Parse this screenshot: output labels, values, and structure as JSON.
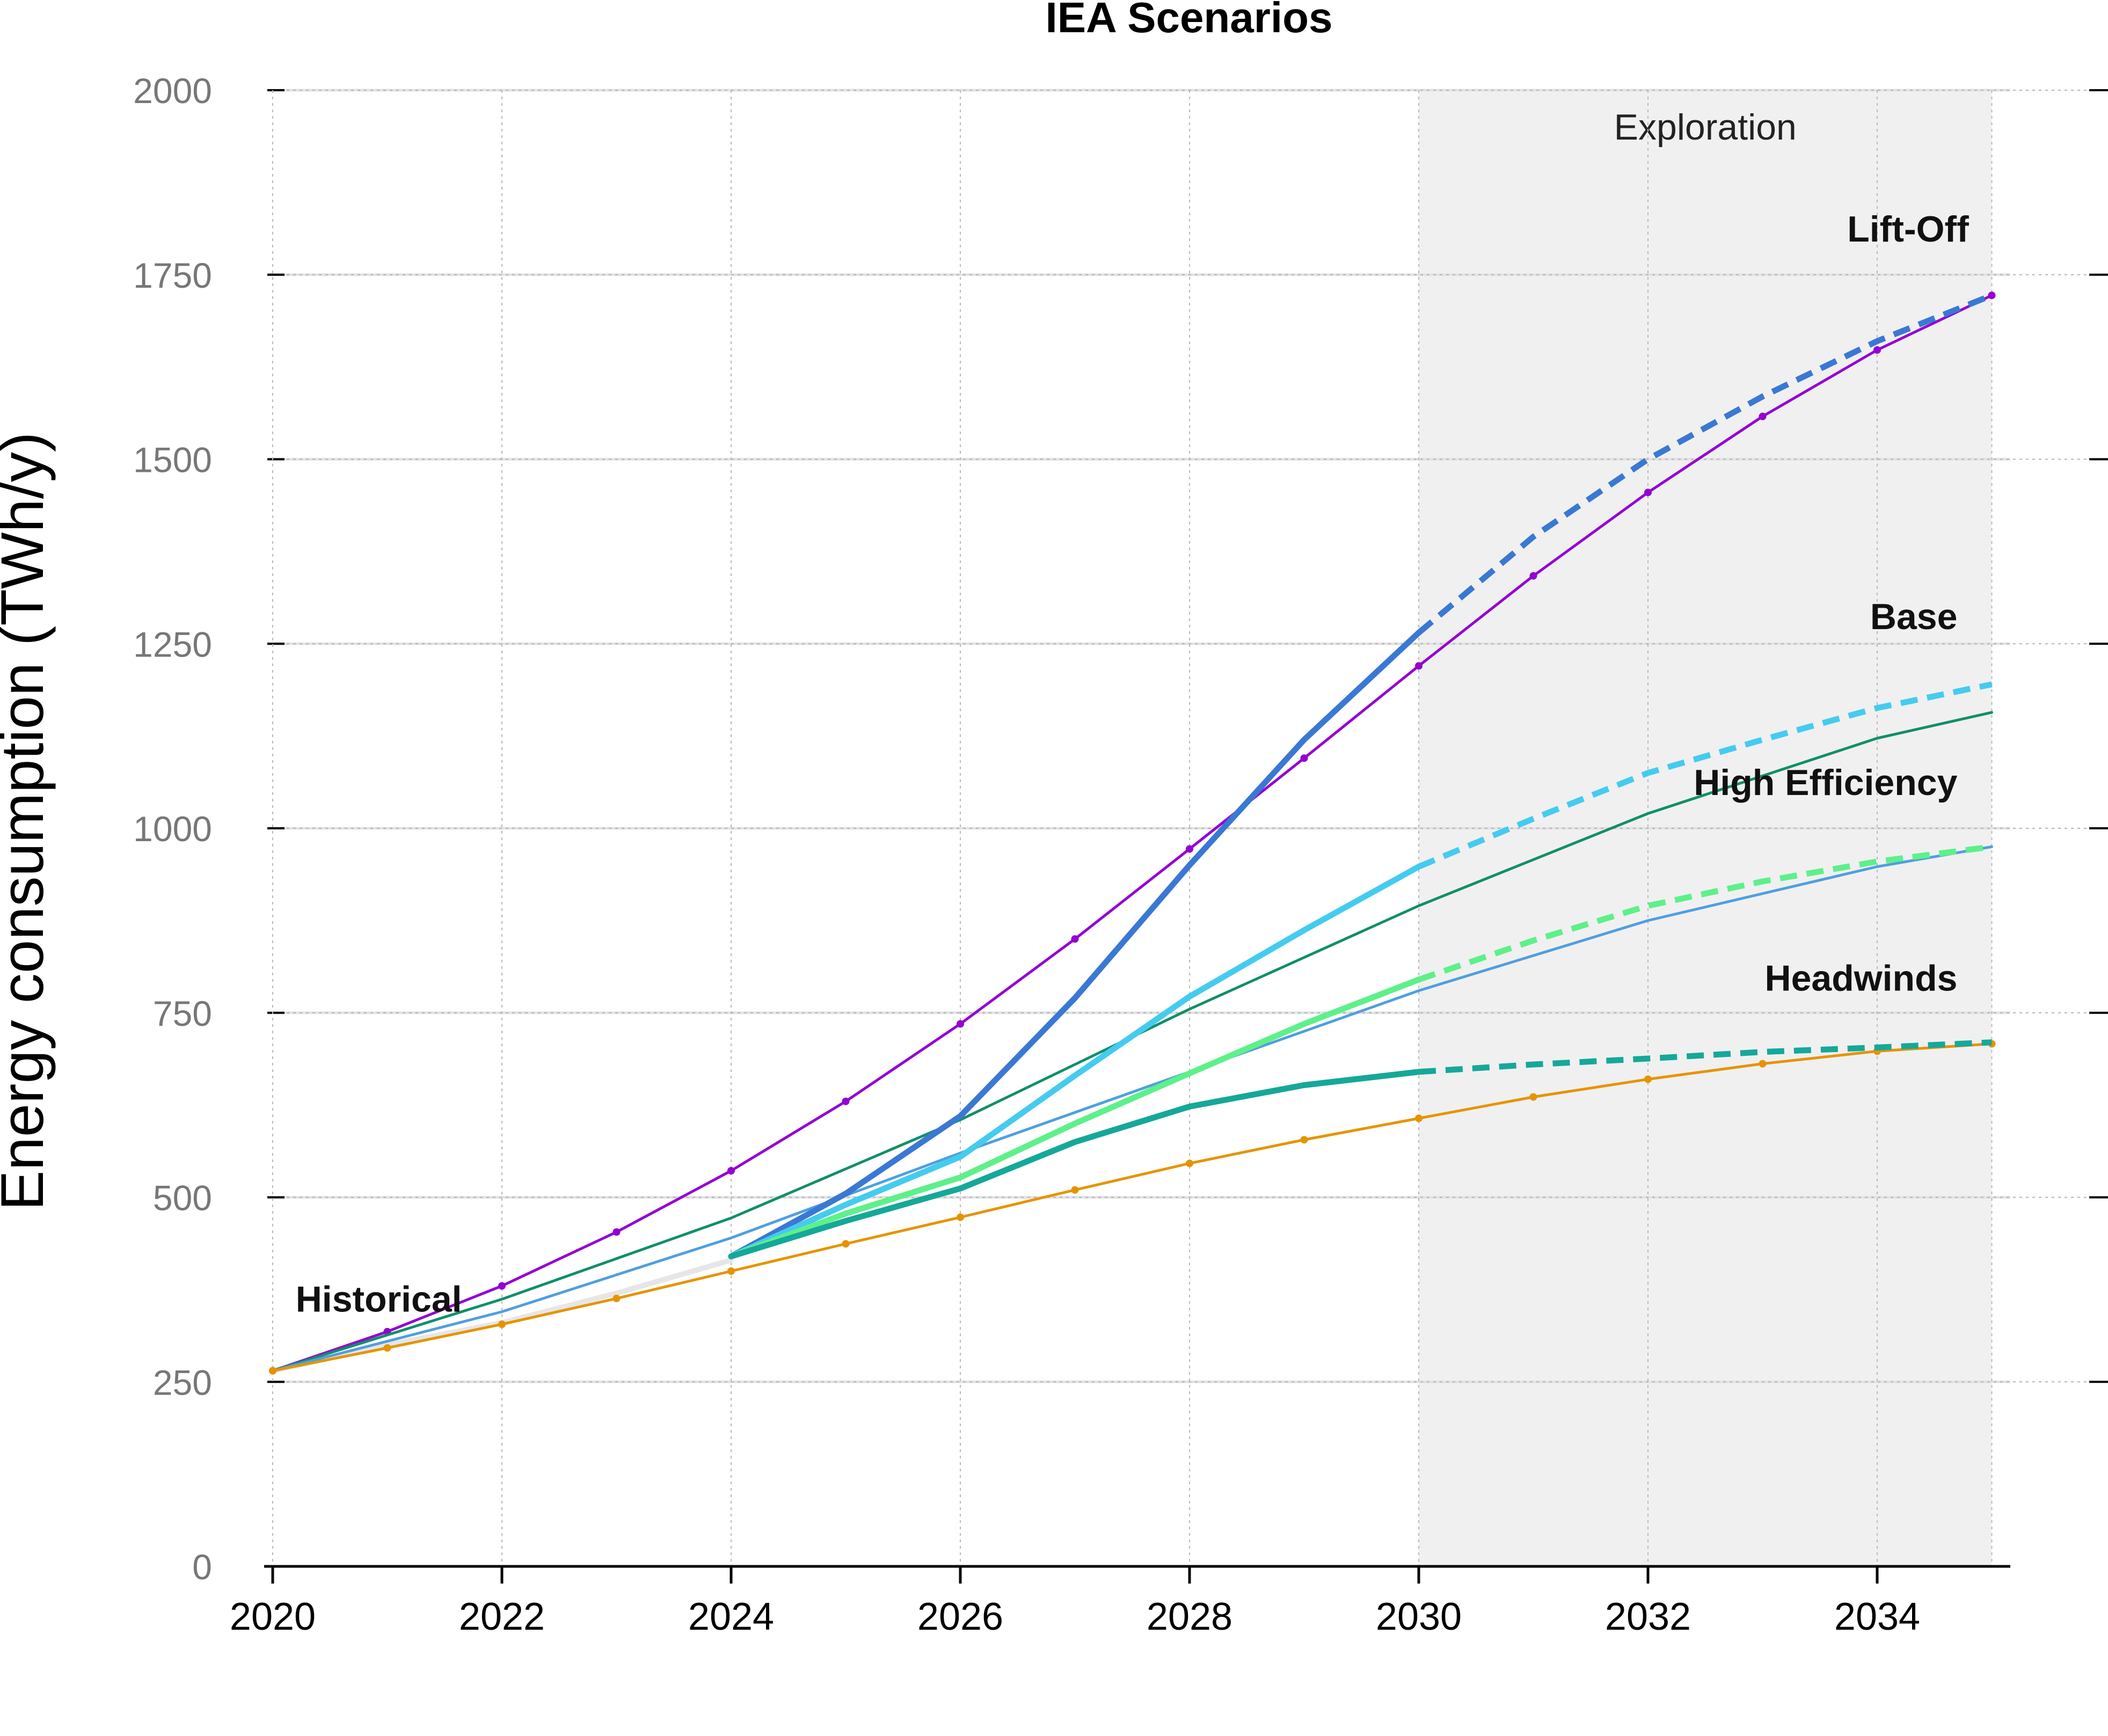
{
  "chart_data": {
    "type": "line",
    "title": "IEA Scenarios",
    "xlabel": "",
    "ylabel": "Energy consumption (TWh/y)",
    "xlim": [
      2020,
      2035
    ],
    "ylim": [
      0,
      2000
    ],
    "x_ticks": [
      "2020",
      "2022",
      "2024",
      "2026",
      "2028",
      "2030",
      "2032",
      "2034"
    ],
    "y_ticks": [
      "0",
      "250",
      "500",
      "750",
      "1000",
      "1250",
      "1500",
      "1750",
      "2000"
    ],
    "grid": true,
    "shaded_region": {
      "label": "Exploration",
      "x_start": 2030,
      "x_end": 2035,
      "color": "#f0f0f0"
    },
    "annotations": [
      {
        "text": "Historical",
        "x": 2020.2,
        "y": 345
      },
      {
        "text": "Lift-Off",
        "x": 2034.8,
        "y": 1795
      },
      {
        "text": "Base",
        "x": 2034.7,
        "y": 1270
      },
      {
        "text": "High Efficiency",
        "x": 2034.7,
        "y": 1045
      },
      {
        "text": "Headwinds",
        "x": 2034.7,
        "y": 780
      }
    ],
    "series": [
      {
        "name": "Historical",
        "color": "#e6e6e6",
        "width": 10,
        "dashed": false,
        "markers": false,
        "x": [
          2020,
          2021,
          2022,
          2023,
          2024
        ],
        "y": [
          265,
          300,
          330,
          370,
          415
        ]
      },
      {
        "name": "",
        "color": "#9400d3",
        "width": 5,
        "dashed": false,
        "markers": true,
        "x": [
          2020,
          2021,
          2022,
          2023,
          2024,
          2025,
          2026,
          2027,
          2028,
          2029,
          2030,
          2031,
          2032,
          2033,
          2034,
          2035
        ],
        "y": [
          265,
          318,
          380,
          453,
          536,
          630,
          735,
          850,
          972,
          1095,
          1220,
          1342,
          1455,
          1558,
          1648,
          1722
        ]
      },
      {
        "name": "",
        "color": "#118f6a",
        "width": 5,
        "dashed": false,
        "markers": false,
        "x": [
          2020,
          2022,
          2024,
          2026,
          2028,
          2030,
          2032,
          2034,
          2035
        ],
        "y": [
          265,
          362,
          472,
          605,
          755,
          895,
          1020,
          1122,
          1157
        ]
      },
      {
        "name": "",
        "color": "#4f9fe0",
        "width": 5,
        "dashed": false,
        "markers": false,
        "x": [
          2020,
          2022,
          2024,
          2026,
          2028,
          2030,
          2032,
          2034,
          2035
        ],
        "y": [
          265,
          345,
          445,
          560,
          670,
          780,
          875,
          948,
          975
        ]
      },
      {
        "name": "",
        "color": "#e59400",
        "width": 5,
        "dashed": false,
        "markers": true,
        "x": [
          2020,
          2021,
          2022,
          2023,
          2024,
          2025,
          2026,
          2027,
          2028,
          2029,
          2030,
          2031,
          2032,
          2033,
          2034,
          2035
        ],
        "y": [
          265,
          296,
          328,
          363,
          400,
          437,
          473,
          510,
          546,
          578,
          607,
          636,
          660,
          681,
          698,
          708
        ]
      },
      {
        "name": "Lift-Off",
        "color": "#3a78d4",
        "width": 11,
        "dashed": false,
        "markers": false,
        "x": [
          2024,
          2025,
          2026,
          2027,
          2028,
          2029,
          2030
        ],
        "y": [
          420,
          505,
          610,
          770,
          950,
          1120,
          1265
        ]
      },
      {
        "name": "",
        "color": "#3a78d4",
        "width": 11,
        "dashed": true,
        "markers": false,
        "x": [
          2030,
          2031,
          2032,
          2033,
          2034,
          2035
        ],
        "y": [
          1265,
          1395,
          1500,
          1585,
          1660,
          1722
        ]
      },
      {
        "name": "Base",
        "color": "#45cbf0",
        "width": 11,
        "dashed": false,
        "markers": false,
        "x": [
          2024,
          2025,
          2026,
          2027,
          2028,
          2029,
          2030
        ],
        "y": [
          420,
          490,
          555,
          665,
          772,
          862,
          948
        ]
      },
      {
        "name": "",
        "color": "#45cbf0",
        "width": 11,
        "dashed": true,
        "markers": false,
        "x": [
          2030,
          2031,
          2032,
          2033,
          2034,
          2035
        ],
        "y": [
          948,
          1013,
          1075,
          1120,
          1163,
          1195
        ]
      },
      {
        "name": "High Efficiency",
        "color": "#5ef08a",
        "width": 11,
        "dashed": false,
        "markers": false,
        "x": [
          2024,
          2025,
          2026,
          2027,
          2028,
          2029,
          2030
        ],
        "y": [
          420,
          478,
          527,
          600,
          668,
          735,
          795
        ]
      },
      {
        "name": "",
        "color": "#5ef08a",
        "width": 11,
        "dashed": true,
        "markers": false,
        "x": [
          2030,
          2031,
          2032,
          2033,
          2034,
          2035
        ],
        "y": [
          795,
          848,
          895,
          928,
          955,
          975
        ]
      },
      {
        "name": "Headwinds",
        "color": "#15a899",
        "width": 11,
        "dashed": false,
        "markers": false,
        "x": [
          2024,
          2025,
          2026,
          2027,
          2028,
          2029,
          2030
        ],
        "y": [
          420,
          468,
          512,
          575,
          623,
          652,
          670
        ]
      },
      {
        "name": "",
        "color": "#15a899",
        "width": 11,
        "dashed": true,
        "markers": false,
        "x": [
          2030,
          2031,
          2032,
          2033,
          2034,
          2035
        ],
        "y": [
          670,
          680,
          688,
          697,
          703,
          710
        ]
      }
    ]
  }
}
